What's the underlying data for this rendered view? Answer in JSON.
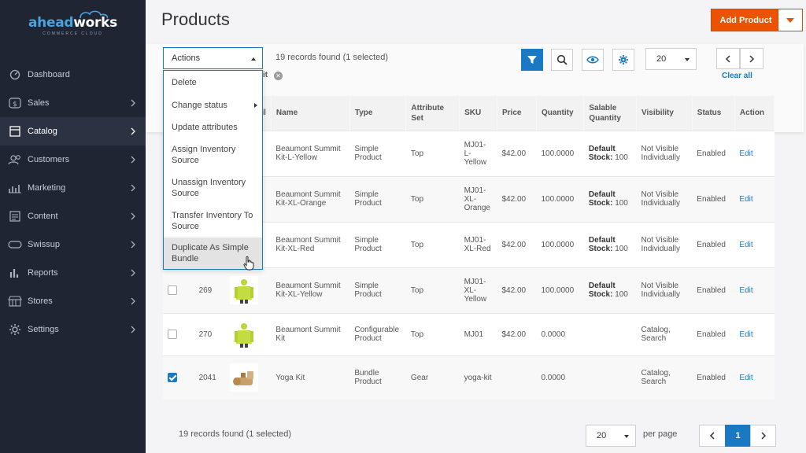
{
  "brand": {
    "logo_part1": "ahead",
    "logo_part2": "works",
    "logo_sub": "COMMERCE CLOUD"
  },
  "sidebar": {
    "items": [
      {
        "label": "Dashboard",
        "icon": "dashboard-icon",
        "active": false
      },
      {
        "label": "Sales",
        "icon": "dollar-icon",
        "active": false
      },
      {
        "label": "Catalog",
        "icon": "catalog-icon",
        "active": true
      },
      {
        "label": "Customers",
        "icon": "customers-icon",
        "active": false
      },
      {
        "label": "Marketing",
        "icon": "marketing-icon",
        "active": false
      },
      {
        "label": "Content",
        "icon": "content-icon",
        "active": false
      },
      {
        "label": "Swissup",
        "icon": "swissup-icon",
        "active": false
      },
      {
        "label": "Reports",
        "icon": "reports-icon",
        "active": false
      },
      {
        "label": "Stores",
        "icon": "stores-icon",
        "active": false
      },
      {
        "label": "Settings",
        "icon": "gear-icon",
        "active": false
      }
    ]
  },
  "header": {
    "title": "Products",
    "add_button": "Add Product"
  },
  "toolbar": {
    "actions_label": "Actions",
    "records_found": "19 records found (1 selected)",
    "chip_text": "it",
    "per_page": "20",
    "clear_all": "Clear all"
  },
  "actions_menu": {
    "items": [
      "Delete",
      "Change status",
      "Update attributes",
      "Assign Inventory Source",
      "Unassign Inventory Source",
      "Transfer Inventory To Source",
      "Duplicate As Simple Bundle"
    ]
  },
  "table": {
    "columns": [
      "il",
      "Name",
      "Type",
      "Attribute Set",
      "SKU",
      "Price",
      "Quantity",
      "Salable Quantity",
      "Visibility",
      "Status",
      "Action"
    ],
    "rows": [
      {
        "id": "",
        "checked": false,
        "thumb": "hoodie-yellow",
        "name": "Beaumont Summit Kit-L-Yellow",
        "type": "Simple Product",
        "attr_set": "Top",
        "sku": "MJ01-L-Yellow",
        "price": "$42.00",
        "qty": "100.0000",
        "stock_label": "Default Stock:",
        "stock_val": "100",
        "visibility": "Not Visible Individually",
        "status": "Enabled",
        "action": "Edit"
      },
      {
        "id": "",
        "checked": false,
        "thumb": "hoodie-orange",
        "name": "Beaumont Summit Kit-XL-Orange",
        "type": "Simple Product",
        "attr_set": "Top",
        "sku": "MJ01-XL-Orange",
        "price": "$42.00",
        "qty": "100.0000",
        "stock_label": "Default Stock:",
        "stock_val": "100",
        "visibility": "Not Visible Individually",
        "status": "Enabled",
        "action": "Edit"
      },
      {
        "id": "",
        "checked": false,
        "thumb": "hoodie-red",
        "name": "Beaumont Summit Kit-XL-Red",
        "type": "Simple Product",
        "attr_set": "Top",
        "sku": "MJ01-XL-Red",
        "price": "$42.00",
        "qty": "100.0000",
        "stock_label": "Default Stock:",
        "stock_val": "100",
        "visibility": "Not Visible Individually",
        "status": "Enabled",
        "action": "Edit"
      },
      {
        "id": "269",
        "checked": false,
        "thumb": "hoodie-yellow",
        "name": "Beaumont Summit Kit-XL-Yellow",
        "type": "Simple Product",
        "attr_set": "Top",
        "sku": "MJ01-XL-Yellow",
        "price": "$42.00",
        "qty": "100.0000",
        "stock_label": "Default Stock:",
        "stock_val": "100",
        "visibility": "Not Visible Individually",
        "status": "Enabled",
        "action": "Edit"
      },
      {
        "id": "270",
        "checked": false,
        "thumb": "hoodie-yellow",
        "name": "Beaumont Summit Kit",
        "type": "Configurable Product",
        "attr_set": "Top",
        "sku": "MJ01",
        "price": "$42.00",
        "qty": "0.0000",
        "stock_label": "",
        "stock_val": "",
        "visibility": "Catalog, Search",
        "status": "Enabled",
        "action": "Edit"
      },
      {
        "id": "2041",
        "checked": true,
        "thumb": "yoga-kit",
        "name": "Yoga Kit",
        "type": "Bundle Product",
        "attr_set": "Gear",
        "sku": "yoga-kit",
        "price": "",
        "qty": "0.0000",
        "stock_label": "",
        "stock_val": "",
        "visibility": "Catalog, Search",
        "status": "Enabled",
        "action": "Edit"
      }
    ]
  },
  "footer": {
    "records_found": "19 records found (1 selected)",
    "per_page": "20",
    "per_page_label": "per page",
    "current_page": "1"
  },
  "colors": {
    "accent": "#1979c3",
    "brand_orange": "#eb5202",
    "sidebar_bg": "#1f2532"
  }
}
